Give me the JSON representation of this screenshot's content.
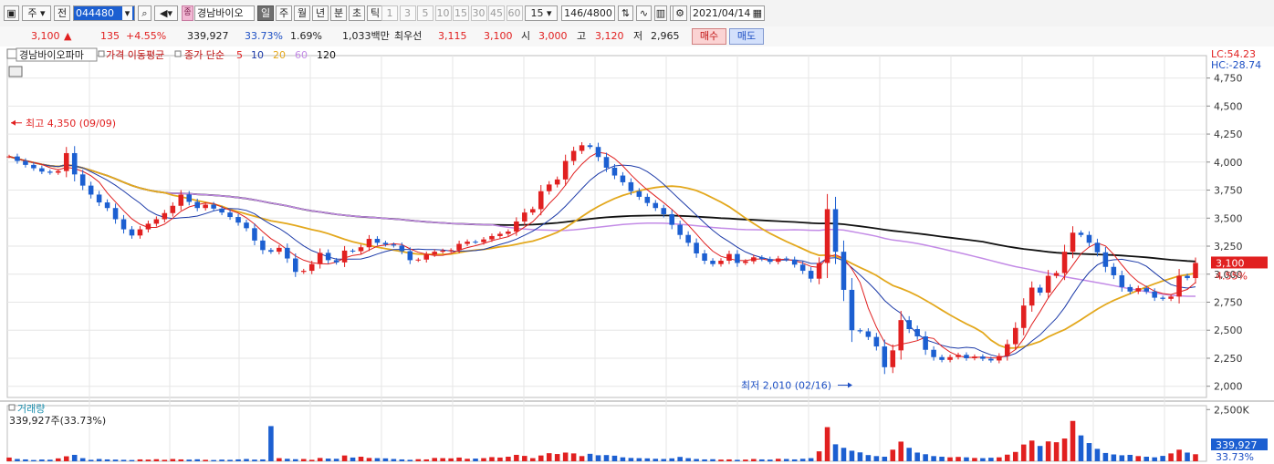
{
  "toolbar": {
    "period_type": "주",
    "market": "전",
    "code": "044480",
    "stock_name": "경남바이오",
    "stock_badge": "종",
    "periods": [
      "일",
      "주",
      "월",
      "년",
      "분",
      "초",
      "틱"
    ],
    "active_period": "일",
    "intervals": [
      "1",
      "3",
      "5",
      "10",
      "15",
      "30",
      "45",
      "60"
    ],
    "interval_value": "15",
    "count": "146/4800",
    "date": "2021/04/14"
  },
  "quote": {
    "price": "3,100",
    "change": "135",
    "change_pct": "+4.55%",
    "volume": "339,927",
    "volume_pct": "33.73%",
    "turnover": "1.69%",
    "amount": "1,033백만",
    "best_label": "최우선",
    "ask": "3,115",
    "bid": "3,100",
    "open_label": "시",
    "open": "3,000",
    "high_label": "고",
    "high": "3,120",
    "low_label": "저",
    "low": "2,965",
    "buy_label": "매수",
    "sell_label": "매도"
  },
  "colors": {
    "up": "#e12020",
    "down": "#1c5fd1",
    "ma5": "#e02020",
    "ma10": "#1c3aa8",
    "ma20": "#e3a81d",
    "ma60": "#c38be6",
    "ma120": "#111111"
  },
  "chart_data": [
    {
      "type": "candlestick",
      "legend_name": "경남바이오파마",
      "ma_label": "가격 이동평균",
      "ma_desc": "종가 단순",
      "ma_periods": [
        "5",
        "10",
        "20",
        "60",
        "120"
      ],
      "lc_label": "LC:54.23",
      "hc_label": "HC:-28.74",
      "yticks": [
        4750,
        4500,
        4250,
        4000,
        3750,
        3500,
        3250,
        3000,
        2750,
        2500,
        2250,
        2000
      ],
      "ylim": [
        1900,
        4950
      ],
      "last_price_label": "3,100",
      "last_pct_label": "4.55%",
      "high_annotation": "최고 4,350 (09/09)",
      "low_annotation": "최저 2,010 (02/16)",
      "closes": [
        4050,
        4010,
        3975,
        3945,
        3915,
        3905,
        3920,
        4080,
        3890,
        3790,
        3710,
        3640,
        3590,
        3490,
        3400,
        3345,
        3400,
        3450,
        3490,
        3545,
        3610,
        3710,
        3645,
        3590,
        3620,
        3585,
        3550,
        3510,
        3460,
        3410,
        3300,
        3215,
        3200,
        3235,
        3140,
        3020,
        3030,
        3090,
        3190,
        3125,
        3105,
        3210,
        3205,
        3240,
        3315,
        3280,
        3265,
        3255,
        3205,
        3125,
        3130,
        3175,
        3200,
        3210,
        3215,
        3270,
        3290,
        3285,
        3310,
        3340,
        3360,
        3380,
        3470,
        3550,
        3580,
        3740,
        3800,
        3845,
        4010,
        4100,
        4150,
        4135,
        4045,
        3950,
        3880,
        3820,
        3740,
        3690,
        3635,
        3590,
        3535,
        3440,
        3350,
        3280,
        3185,
        3120,
        3090,
        3120,
        3180,
        3100,
        3115,
        3150,
        3135,
        3110,
        3140,
        3130,
        3085,
        3030,
        2960,
        3100,
        3580,
        3200,
        2860,
        2500,
        2490,
        2440,
        2355,
        2170,
        2320,
        2590,
        2510,
        2445,
        2325,
        2260,
        2235,
        2260,
        2280,
        2250,
        2265,
        2245,
        2230,
        2270,
        2375,
        2520,
        2720,
        2880,
        2835,
        2985,
        3010,
        3200,
        3370,
        3350,
        3280,
        3195,
        3065,
        2990,
        2885,
        2845,
        2875,
        2845,
        2790,
        2780,
        2800,
        2985,
        2965,
        3100
      ],
      "volume_title": "거래량",
      "volume_label": "339,927주(33.73%)",
      "volume_tick": "2,500K",
      "volume_last_label": "339,927",
      "volume_last_pct": "33.73%",
      "volumes": [
        180,
        110,
        90,
        60,
        85,
        75,
        140,
        240,
        310,
        150,
        70,
        110,
        90,
        80,
        70,
        60,
        90,
        80,
        100,
        70,
        110,
        90,
        80,
        95,
        70,
        60,
        80,
        70,
        90,
        110,
        80,
        90,
        1700,
        150,
        120,
        100,
        110,
        70,
        160,
        130,
        120,
        280,
        180,
        220,
        160,
        150,
        140,
        110,
        90,
        70,
        100,
        90,
        160,
        150,
        140,
        180,
        120,
        130,
        150,
        200,
        180,
        220,
        310,
        260,
        150,
        280,
        390,
        350,
        420,
        380,
        250,
        360,
        290,
        300,
        270,
        190,
        160,
        150,
        140,
        120,
        110,
        140,
        210,
        150,
        110,
        90,
        100,
        80,
        90,
        70,
        80,
        110,
        90,
        80,
        120,
        110,
        90,
        120,
        150,
        480,
        1650,
        820,
        650,
        510,
        430,
        300,
        250,
        220,
        560,
        950,
        650,
        420,
        340,
        250,
        220,
        190,
        210,
        190,
        160,
        150,
        170,
        190,
        320,
        450,
        810,
        1000,
        740,
        960,
        920,
        1100,
        1950,
        1250,
        880,
        600,
        400,
        330,
        290,
        310,
        250,
        220,
        190,
        260,
        380,
        560,
        420,
        339.9
      ]
    }
  ]
}
